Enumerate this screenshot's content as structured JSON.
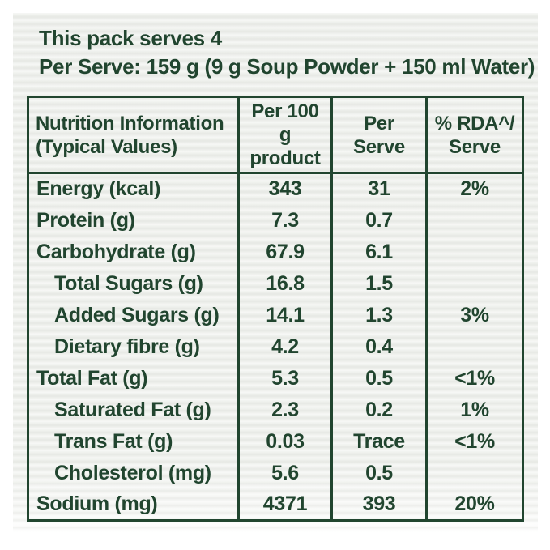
{
  "intro": {
    "line1": "This pack serves 4",
    "line2": "Per Serve: 159 g (9 g Soup Powder + 150 ml Water)"
  },
  "table": {
    "headers": [
      {
        "line1": "Nutrition Information",
        "line2": "(Typical Values)"
      },
      {
        "line1": "Per 100 g",
        "line2": "product"
      },
      {
        "line1": "Per Serve",
        "line2": ""
      },
      {
        "line1": "% RDA^/",
        "line2": "Serve"
      }
    ],
    "rows": [
      {
        "label": "Energy (kcal)",
        "per_100g": "343",
        "per_serve": "31",
        "rda_per_serve": "2%"
      },
      {
        "label": "Protein (g)",
        "per_100g": "7.3",
        "per_serve": "0.7",
        "rda_per_serve": ""
      },
      {
        "label": "Carbohydrate (g)",
        "per_100g": "67.9",
        "per_serve": "6.1",
        "rda_per_serve": ""
      },
      {
        "label": "Total Sugars (g)",
        "per_100g": "16.8",
        "per_serve": "1.5",
        "rda_per_serve": ""
      },
      {
        "label": "Added Sugars (g)",
        "per_100g": "14.1",
        "per_serve": "1.3",
        "rda_per_serve": "3%"
      },
      {
        "label": "Dietary fibre (g)",
        "per_100g": "4.2",
        "per_serve": "0.4",
        "rda_per_serve": ""
      },
      {
        "label": "Total Fat (g)",
        "per_100g": "5.3",
        "per_serve": "0.5",
        "rda_per_serve": "<1%"
      },
      {
        "label": "Saturated Fat (g)",
        "per_100g": "2.3",
        "per_serve": "0.2",
        "rda_per_serve": "1%"
      },
      {
        "label": "Trans Fat (g)",
        "per_100g": "0.03",
        "per_serve": "Trace",
        "rda_per_serve": "<1%"
      },
      {
        "label": "Cholesterol (mg)",
        "per_100g": "5.6",
        "per_serve": "0.5",
        "rda_per_serve": ""
      },
      {
        "label": "Sodium (mg)",
        "per_100g": "4371",
        "per_serve": "393",
        "rda_per_serve": "20%"
      }
    ]
  },
  "colors": {
    "text_green": "#21452f",
    "border_green": "#21452f",
    "panel_background": "#eef0ec",
    "page_background": "#ffffff"
  }
}
